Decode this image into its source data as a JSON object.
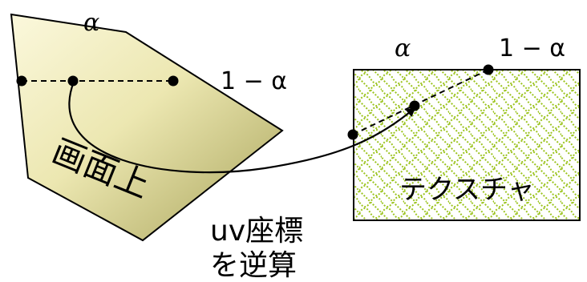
{
  "labels": {
    "alpha_top": "α",
    "one_minus_alpha_left": "1 − α",
    "screen": "画面上",
    "alpha_texture": "α",
    "one_minus_alpha_right": "1 − α",
    "texture": "テクスチャ",
    "uv_line1": "uv座標",
    "uv_line2": "を逆算"
  },
  "colors": {
    "quad_fill_light": "#fbf8dc",
    "quad_fill_dark": "#a8a35a",
    "texture_pattern": "#9cc41f",
    "stroke": "#000000"
  }
}
